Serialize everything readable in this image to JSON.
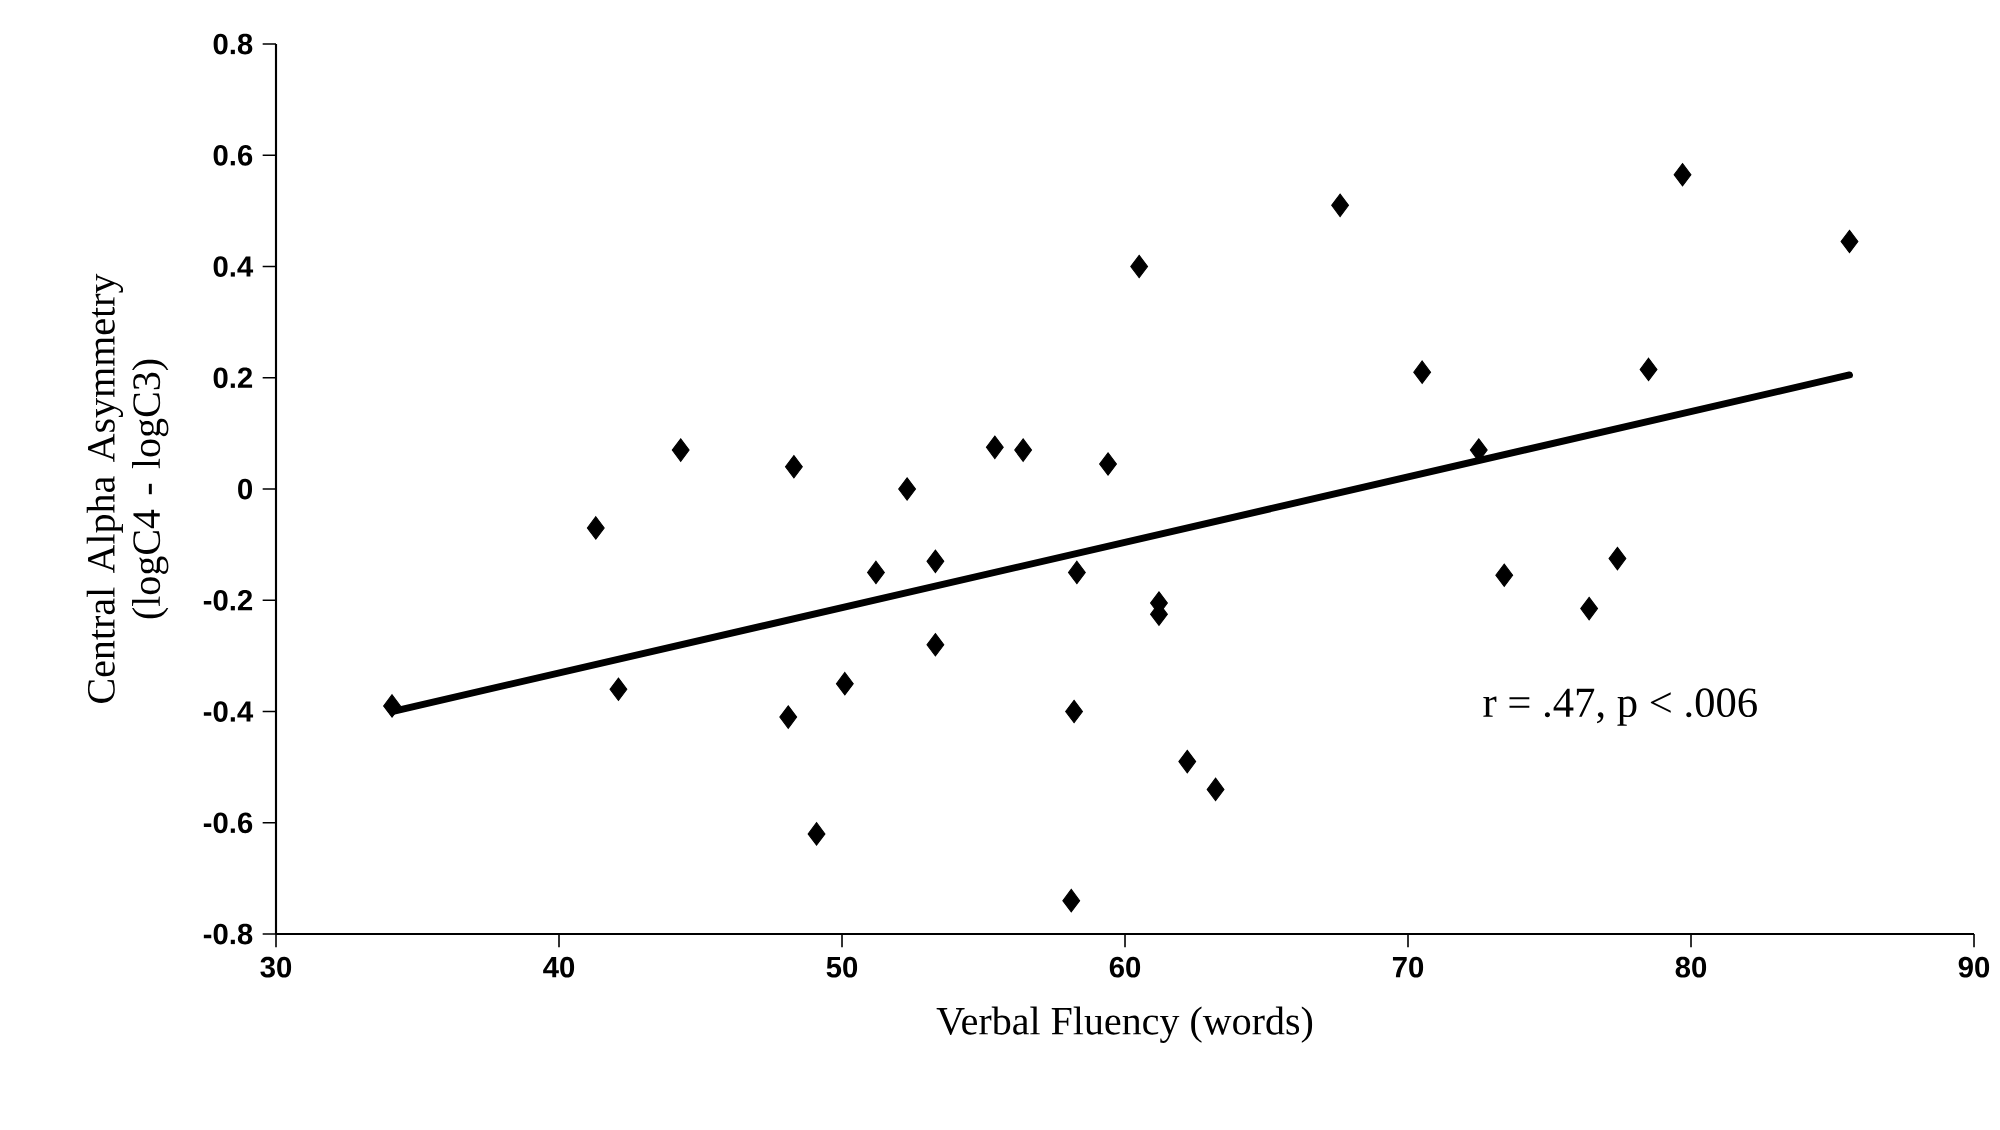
{
  "chart_data": {
    "type": "scatter",
    "xlabel": "Verbal Fluency (words)",
    "ylabel": "Central Alpha Asymmetry (logC4 - logC3)",
    "annotations": [
      "r = .47, p < .006"
    ],
    "xlim": [
      30,
      90
    ],
    "xticks": [
      30,
      40,
      50,
      60,
      70,
      80,
      90
    ],
    "ylim": [
      -0.8,
      0.8
    ],
    "yticks": [
      -0.8,
      -0.6,
      -0.4,
      -0.2,
      0,
      0.2,
      0.4,
      0.6,
      0.8
    ],
    "series": [
      {
        "color": "#000000",
        "marker": "diamond",
        "x": [
          34.1,
          41.3,
          42.1,
          44.3,
          48.1,
          48.3,
          49.1,
          50.1,
          51.2,
          52.3,
          53.3,
          53.3,
          55.4,
          56.4,
          58.1,
          58.2,
          58.3,
          59.4,
          60.5,
          61.2,
          61.2,
          62.2,
          63.2,
          67.6,
          70.5,
          72.5,
          73.4,
          76.4,
          77.4,
          78.5,
          79.7,
          85.6
        ],
        "values": [
          -0.39,
          -0.07,
          -0.36,
          0.07,
          -0.41,
          0.04,
          -0.62,
          -0.35,
          -0.15,
          0.0,
          -0.13,
          -0.28,
          0.075,
          0.07,
          -0.74,
          -0.4,
          -0.15,
          0.045,
          0.4,
          -0.205,
          -0.225,
          -0.49,
          -0.54,
          0.51,
          0.21,
          0.07,
          -0.155,
          -0.215,
          -0.125,
          0.215,
          0.565,
          0.445
        ]
      },
      {
        "type": "line",
        "color": "#000000",
        "x": [
          34.1,
          85.6
        ],
        "values": [
          -0.4,
          0.205
        ]
      }
    ]
  }
}
